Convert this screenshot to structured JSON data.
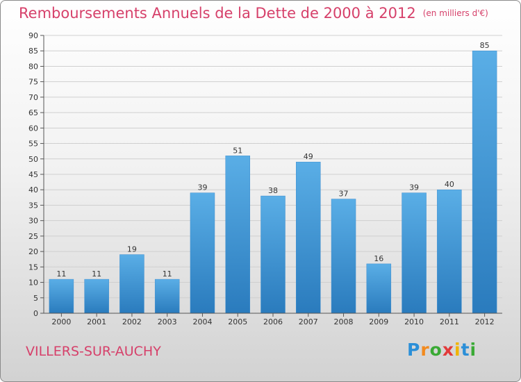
{
  "title": "Remboursements Annuels de la Dette de 2000 à 2012",
  "subtitle": "(en milliers d'€)",
  "commune": "VILLERS-SUR-AUCHY",
  "logo": {
    "letters": [
      {
        "char": "P",
        "color": "#2b8fd8"
      },
      {
        "char": "r",
        "color": "#f28a1e"
      },
      {
        "char": "o",
        "color": "#3aaa35"
      },
      {
        "char": "x",
        "color": "#e23a3a"
      },
      {
        "char": "i",
        "color": "#f0b400"
      },
      {
        "char": "t",
        "color": "#2b8fd8"
      },
      {
        "char": "i",
        "color": "#3aaa35"
      }
    ]
  },
  "colors": {
    "accent": "#d6406a",
    "bar_top": "#5aaee6",
    "bar_bottom": "#2a7bbd",
    "grid": "#cfcfcf",
    "axis": "#555555"
  },
  "chart_data": {
    "type": "bar",
    "categories": [
      "2000",
      "2001",
      "2002",
      "2003",
      "2004",
      "2005",
      "2006",
      "2007",
      "2008",
      "2009",
      "2010",
      "2011",
      "2012"
    ],
    "values": [
      11,
      11,
      19,
      11,
      39,
      51,
      38,
      49,
      37,
      16,
      39,
      40,
      85
    ],
    "data_labels": [
      "11",
      "11",
      "19",
      "11",
      "39",
      "51",
      "38",
      "49",
      "37",
      "16",
      "39",
      "40",
      "85"
    ],
    "ylim": [
      0,
      90
    ],
    "yticks": [
      0,
      5,
      10,
      15,
      20,
      25,
      30,
      35,
      40,
      45,
      50,
      55,
      60,
      65,
      70,
      75,
      80,
      85,
      90
    ],
    "grid": true,
    "xlabel": "",
    "ylabel": ""
  }
}
